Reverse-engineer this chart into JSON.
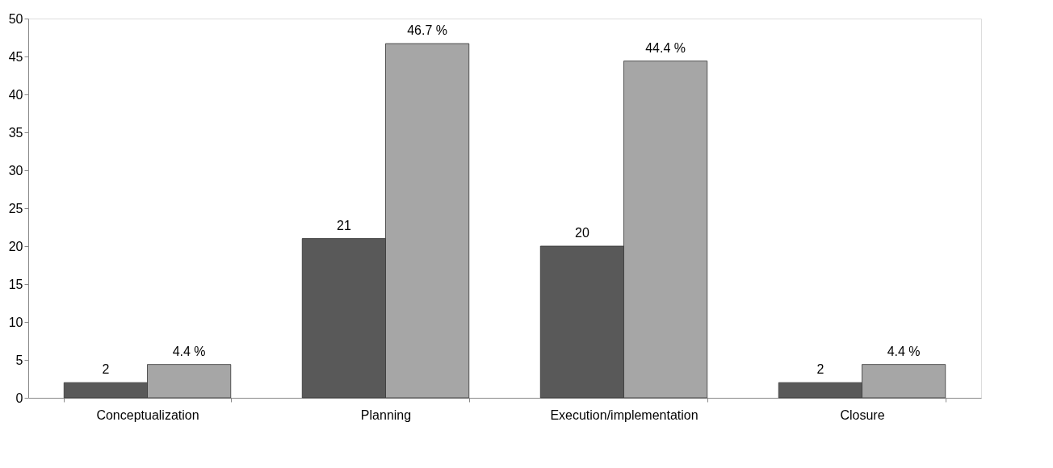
{
  "chart_data": {
    "type": "bar",
    "categories": [
      "Conceptualization",
      "Planning",
      "Execution/implementation",
      "Closure"
    ],
    "series": [
      {
        "color": "#595959",
        "values": [
          2,
          21,
          20,
          2
        ],
        "value_labels": [
          "2",
          "21",
          "20",
          "2"
        ]
      },
      {
        "color": "#a6a6a6",
        "values": [
          4.4,
          46.7,
          44.4,
          4.4
        ],
        "value_labels": [
          "4.4 %",
          "46.7 %",
          "44.4 %",
          "4.4 %"
        ]
      }
    ],
    "ylim": [
      0,
      50
    ],
    "yticks": [
      0,
      5,
      10,
      15,
      20,
      25,
      30,
      35,
      40,
      45,
      50
    ],
    "grid": false,
    "legend": false
  }
}
